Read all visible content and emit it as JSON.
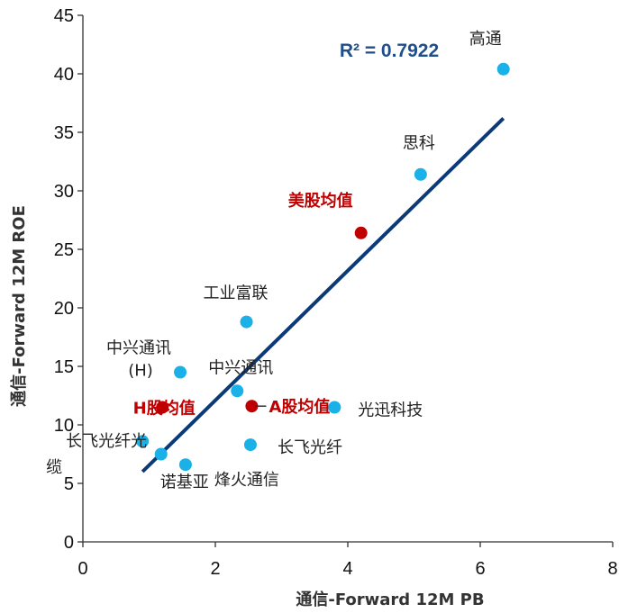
{
  "chart_data": {
    "type": "scatter",
    "xlabel": "通信-Forward 12M PB",
    "ylabel": "通信-Forward 12M ROE",
    "xlim": [
      0,
      8
    ],
    "ylim": [
      0,
      45
    ],
    "x_ticks": [
      "0",
      "2",
      "4",
      "6",
      "8"
    ],
    "y_ticks": [
      "0",
      "5",
      "10",
      "15",
      "20",
      "25",
      "30",
      "35",
      "40",
      "45"
    ],
    "grid": false,
    "annotation": "R² = 0.7922",
    "colors": {
      "company": "#1ab0e8",
      "average": "#c00000",
      "trendline": "#0b3a78"
    },
    "trendline": {
      "x": [
        0.9,
        6.35
      ],
      "y": [
        6.0,
        36.2
      ]
    },
    "points": [
      {
        "x": 6.35,
        "y": 40.4,
        "kind": "company",
        "label": [
          "高通"
        ]
      },
      {
        "x": 5.1,
        "y": 31.4,
        "kind": "company",
        "label": [
          "思科"
        ]
      },
      {
        "x": 4.2,
        "y": 26.4,
        "kind": "average",
        "label": [
          "美股均值"
        ]
      },
      {
        "x": 2.47,
        "y": 18.8,
        "kind": "company",
        "label": [
          "工业富联"
        ]
      },
      {
        "x": 1.47,
        "y": 14.5,
        "kind": "company",
        "label": [
          "中兴通讯",
          "(H)"
        ]
      },
      {
        "x": 2.33,
        "y": 12.9,
        "kind": "company",
        "label": [
          "中兴通讯"
        ]
      },
      {
        "x": 1.2,
        "y": 11.5,
        "kind": "average",
        "label": [
          "H股均值"
        ]
      },
      {
        "x": 2.55,
        "y": 11.6,
        "kind": "average",
        "label": [
          "A股均值"
        ]
      },
      {
        "x": 3.8,
        "y": 11.5,
        "kind": "company",
        "label": [
          "光迅科技"
        ]
      },
      {
        "x": 2.53,
        "y": 8.3,
        "kind": "company",
        "label": [
          "长飞光纤"
        ]
      },
      {
        "x": 0.9,
        "y": 8.6,
        "kind": "company",
        "label": [
          "长飞光纤光",
          "缆"
        ]
      },
      {
        "x": 1.18,
        "y": 7.5,
        "kind": "company",
        "label": [
          "诺基亚"
        ]
      },
      {
        "x": 1.55,
        "y": 6.6,
        "kind": "company",
        "label": [
          "烽火通信"
        ]
      }
    ]
  }
}
